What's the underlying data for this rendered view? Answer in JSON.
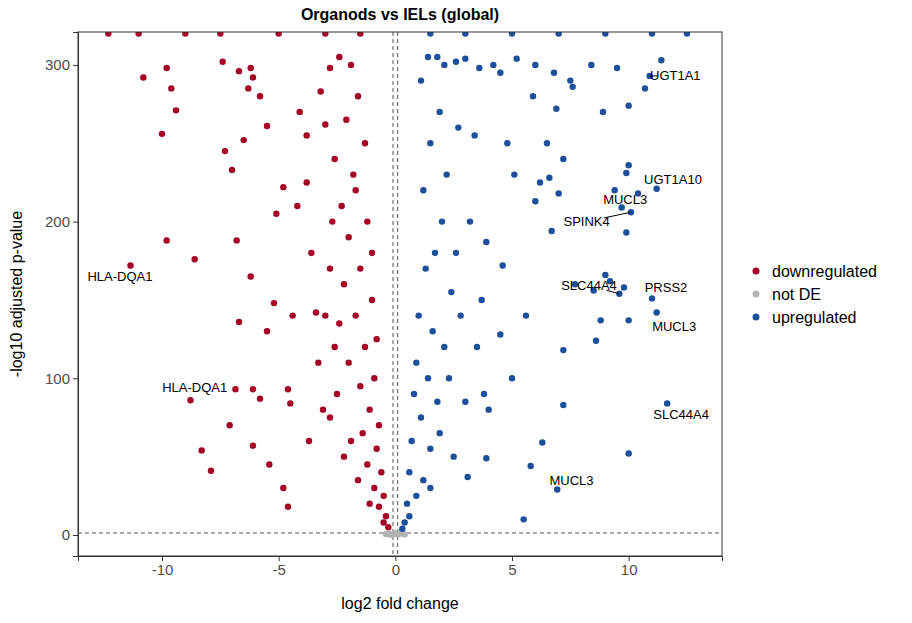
{
  "chart_data": {
    "type": "scatter",
    "title": "Organods vs IELs (global)",
    "x_label": "log2 fold change",
    "y_label": "-log10 adjusted p-value",
    "xlim": [
      -13.6,
      14.0
    ],
    "ylim": [
      -13.4,
      321
    ],
    "xticks": [
      -10,
      -5,
      0,
      5,
      10
    ],
    "yticks": [
      0,
      100,
      200,
      300
    ],
    "grid": false,
    "legend": "right",
    "marker": "circle",
    "reference_lines": {
      "x": [
        -0.1,
        0.1
      ],
      "y": [
        1.3
      ]
    },
    "series": [
      {
        "name": "downregulated",
        "color": "#a50026",
        "x": [
          -10.8,
          -9.8,
          -9.6,
          -9.4,
          -10,
          -7.4,
          -7.3,
          -6.7,
          -6.2,
          -6.1,
          -6.3,
          -5.8,
          -5.5,
          -7,
          -6.5,
          -9.8,
          -8.6,
          -6.8,
          -6.2,
          -5.1,
          -4.2,
          -4.8,
          -3.8,
          -4.1,
          -3.8,
          -3.2,
          -3,
          -2.8,
          -2.4,
          -5.2,
          -6.7,
          -4.4,
          -5.5,
          -3.4,
          -2.8,
          -6.1,
          -4.6,
          -5.8,
          -4.5,
          -7.1,
          -6.1,
          -8.3,
          -7.9,
          -5.4,
          -4.8,
          -4.6,
          -3.7,
          -3.1,
          -3.3,
          -2.6,
          -3.6,
          -2.3,
          -2.6,
          -1.9,
          -1.6,
          -1.3,
          -2.1,
          -1.8,
          -1.2,
          -2.0,
          -1.5,
          -2.2,
          -1.0,
          -1.7,
          -1.3,
          -2.0,
          -0.9,
          -1.5,
          -1.1,
          -0.7,
          -1.4,
          -0.8,
          -1.9,
          -0.6,
          -1.2,
          -0.5,
          -0.9,
          -0.4,
          -0.7,
          -0.3,
          -0.5,
          -2.5,
          -2.8,
          -2.2,
          -1.6,
          -1.1,
          -3.0,
          -2.4,
          -1.0,
          -0.8,
          -1.7,
          -2.7,
          -12.3,
          -11,
          -9,
          -7.5,
          -5,
          -3,
          -1.5,
          -11.35,
          -8.78,
          -6.85
        ],
        "values": [
          292,
          298,
          285,
          271,
          256,
          302,
          245,
          296,
          298,
          292,
          285,
          280,
          261,
          233,
          252,
          188,
          176,
          188,
          165,
          205,
          210,
          222,
          225,
          270,
          255,
          283,
          262,
          298,
          305,
          148,
          136,
          140,
          130,
          142,
          170,
          93,
          93,
          87,
          84,
          70,
          57,
          54,
          41,
          45,
          30,
          18,
          60,
          80,
          110,
          120,
          180,
          210,
          240,
          300,
          280,
          250,
          265,
          230,
          200,
          190,
          170,
          160,
          150,
          140,
          120,
          110,
          100,
          95,
          80,
          70,
          65,
          55,
          60,
          40,
          45,
          25,
          30,
          12,
          18,
          5,
          8,
          90,
          75,
          50,
          35,
          20,
          140,
          135,
          180,
          125,
          220,
          200,
          320,
          320,
          320,
          320,
          320,
          320,
          320,
          172,
          86,
          93
        ]
      },
      {
        "name": "not DE",
        "color": "#b3b3b3",
        "x": [
          -0.3,
          -0.1,
          0,
          0.1,
          0.2,
          -0.2,
          0.05,
          -0.4,
          0.3,
          0.4
        ],
        "values": [
          1,
          0.5,
          0.8,
          0.3,
          1.1,
          0.2,
          1.2,
          0.6,
          0.9,
          0.4
        ]
      },
      {
        "name": "upregulated",
        "color": "#1c4f9c",
        "x": [
          1.8,
          2.1,
          2.6,
          3.0,
          3.6,
          4.2,
          4.5,
          5.2,
          6.0,
          6.8,
          7.5,
          8.4,
          9.5,
          10.7,
          11.4,
          10.0,
          8.9,
          6.9,
          5.9,
          7.6,
          3.4,
          4.8,
          5.1,
          6.5,
          6.6,
          6.2,
          7.2,
          10.0,
          9.9,
          9.4,
          10.4,
          9.9,
          6.7,
          7.0,
          6.0,
          7.7,
          9.0,
          9.2,
          9.8,
          8.5,
          10.0,
          8.8,
          8.6,
          7.2,
          5.6,
          4.6,
          3.9,
          3.7,
          4.5,
          3.2,
          3.0,
          3.8,
          5.0,
          4.0,
          7.2,
          10.0,
          6.3,
          5.8,
          3.9,
          3.1,
          2.5,
          5.5,
          2.2,
          2.7,
          1.9,
          1.5,
          1.2,
          2.0,
          1.7,
          1.3,
          2.4,
          1.0,
          1.6,
          2.1,
          0.9,
          1.4,
          0.8,
          1.8,
          1.1,
          0.7,
          1.5,
          0.6,
          1.2,
          0.5,
          0.9,
          0.4,
          0.6,
          0.3,
          2.8,
          2.3,
          1.9,
          1.5,
          3.5,
          2.6,
          1.1,
          1.4,
          1.5,
          3,
          5,
          7,
          9,
          11,
          12.5,
          10.9,
          11.2,
          10.1,
          9.7,
          9.6,
          11.0,
          11.2,
          11.65,
          6.94
        ],
        "values": [
          305,
          300,
          302,
          304,
          298,
          300,
          295,
          304,
          300,
          295,
          290,
          300,
          298,
          285,
          303,
          274,
          270,
          272,
          280,
          286,
          255,
          250,
          230,
          250,
          228,
          225,
          240,
          236,
          231,
          220,
          218,
          193,
          194,
          218,
          213,
          160,
          166,
          162,
          158,
          156,
          137,
          137,
          124,
          118,
          140,
          172,
          187,
          150,
          128,
          200,
          85,
          90,
          100,
          80,
          83,
          52,
          59,
          44,
          49,
          37,
          50,
          10,
          230,
          260,
          270,
          250,
          220,
          200,
          180,
          170,
          155,
          140,
          130,
          120,
          110,
          100,
          90,
          85,
          75,
          60,
          55,
          40,
          35,
          20,
          25,
          8,
          12,
          4,
          140,
          100,
          65,
          30,
          120,
          180,
          290,
          305,
          320,
          320,
          320,
          320,
          320,
          320,
          320,
          293,
          221,
          206,
          209,
          154,
          151,
          142,
          84,
          29
        ]
      }
    ],
    "annotations": [
      {
        "text": "HLA-DQA1",
        "x": -11.35,
        "y": 172,
        "text_x": -11.8,
        "text_y": 165
      },
      {
        "text": "HLA-DQA1",
        "x": -8.78,
        "y": 86,
        "text_x": -8.6,
        "text_y": 94
      },
      {
        "text": "UGT1A1",
        "x": 10.9,
        "y": 293,
        "text_x": 12.0,
        "text_y": 293
      },
      {
        "text": "UGT1A10",
        "x": 11.2,
        "y": 221,
        "text_x": 11.9,
        "text_y": 227
      },
      {
        "text": "MUCL3",
        "x": 9.7,
        "y": 209,
        "text_x": 9.85,
        "text_y": 214
      },
      {
        "text": "SPINK4",
        "x": 10.1,
        "y": 206,
        "text_x": 8.2,
        "text_y": 200
      },
      {
        "text": "SLC44A4",
        "x": 9.6,
        "y": 154,
        "text_x": 8.3,
        "text_y": 159
      },
      {
        "text": "PRSS2",
        "x": 11.0,
        "y": 151,
        "text_x": 11.6,
        "text_y": 158
      },
      {
        "text": "MUCL3",
        "x": 11.2,
        "y": 142,
        "text_x": 11.95,
        "text_y": 133
      },
      {
        "text": "SLC44A4",
        "x": 11.65,
        "y": 84,
        "text_x": 12.25,
        "text_y": 77
      },
      {
        "text": "MUCL3",
        "x": 6.94,
        "y": 29,
        "text_x": 7.55,
        "text_y": 35
      }
    ]
  }
}
